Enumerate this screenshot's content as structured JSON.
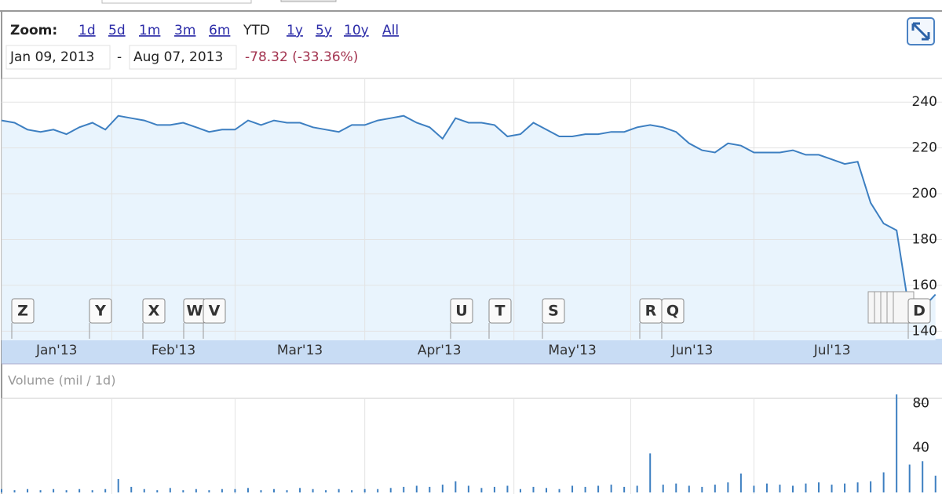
{
  "zoom": {
    "label": "Zoom:",
    "options": [
      "1d",
      "5d",
      "1m",
      "3m",
      "6m",
      "YTD",
      "1y",
      "5y",
      "10y",
      "All"
    ]
  },
  "range": {
    "start": "Jan 09, 2013",
    "separator": "-",
    "end": "Aug 07, 2013",
    "change": "-78.32 (-33.36%)"
  },
  "chart_data": [
    {
      "type": "line",
      "color": "#3d7fc1",
      "fill": "#e9f4fd",
      "x": [
        0,
        2,
        4,
        6,
        8,
        10,
        12,
        14,
        16,
        18,
        20,
        22,
        24,
        26,
        28,
        30,
        32,
        34,
        36,
        38,
        40,
        42,
        44,
        46,
        48,
        50,
        52,
        54,
        56,
        58,
        60,
        62,
        64,
        66,
        68,
        70,
        72,
        74,
        76,
        78,
        80,
        82,
        84,
        86,
        88,
        90,
        92,
        94,
        96,
        98,
        100,
        102,
        104,
        106,
        108,
        110,
        112,
        114,
        116,
        118,
        120,
        122,
        124,
        126,
        128,
        130,
        132,
        134,
        136,
        138,
        140,
        142,
        144
      ],
      "values": [
        232,
        231,
        228,
        227,
        228,
        226,
        229,
        231,
        228,
        234,
        233,
        232,
        230,
        230,
        231,
        229,
        227,
        228,
        228,
        232,
        230,
        232,
        231,
        231,
        229,
        228,
        227,
        230,
        230,
        232,
        233,
        234,
        231,
        229,
        224,
        233,
        231,
        231,
        230,
        225,
        226,
        231,
        228,
        225,
        225,
        226,
        226,
        227,
        227,
        229,
        230,
        229,
        227,
        222,
        219,
        218,
        222,
        221,
        218,
        218,
        218,
        219,
        217,
        217,
        215,
        213,
        214,
        196,
        187,
        184,
        148,
        150,
        156
      ],
      "xlim": [
        0,
        145
      ],
      "xticks": [
        {
          "value": 0,
          "label": "Jan'13"
        },
        {
          "value": 17,
          "label": "Feb'13"
        },
        {
          "value": 36,
          "label": "Mar'13"
        },
        {
          "value": 56,
          "label": "Apr'13"
        },
        {
          "value": 79,
          "label": "May'13"
        },
        {
          "value": 97,
          "label": "Jun'13"
        },
        {
          "value": 116,
          "label": "Jul'13"
        }
      ],
      "ylim": [
        136,
        250
      ],
      "yticks": [
        140,
        160,
        180,
        200,
        220,
        240
      ],
      "grid": true,
      "annotations": [
        "Z",
        "Y",
        "X",
        "W",
        "V",
        "U",
        "T",
        "S",
        "R",
        "Q",
        "D"
      ]
    },
    {
      "type": "bar",
      "title": "Volume (mil / 1d)",
      "color": "#3d7fc1",
      "x": [
        0,
        2,
        4,
        6,
        8,
        10,
        12,
        14,
        16,
        18,
        20,
        22,
        24,
        26,
        28,
        30,
        32,
        34,
        36,
        38,
        40,
        42,
        44,
        46,
        48,
        50,
        52,
        54,
        56,
        58,
        60,
        62,
        64,
        66,
        68,
        70,
        72,
        74,
        76,
        78,
        80,
        82,
        84,
        86,
        88,
        90,
        92,
        94,
        96,
        98,
        100,
        102,
        104,
        106,
        108,
        110,
        112,
        114,
        116,
        118,
        120,
        122,
        124,
        126,
        128,
        130,
        132,
        134,
        136,
        138,
        140,
        142,
        144
      ],
      "values": [
        3,
        2,
        3,
        2,
        3,
        2,
        3,
        2,
        3,
        12,
        5,
        3,
        2,
        4,
        2,
        3,
        2,
        3,
        3,
        4,
        2,
        3,
        2,
        4,
        3,
        2,
        3,
        2,
        3,
        3,
        4,
        5,
        6,
        5,
        7,
        10,
        6,
        4,
        5,
        6,
        3,
        5,
        4,
        3,
        6,
        5,
        6,
        7,
        5,
        6,
        35,
        7,
        8,
        6,
        5,
        7,
        9,
        17,
        6,
        8,
        7,
        6,
        8,
        9,
        7,
        8,
        9,
        10,
        18,
        88,
        25,
        28,
        15
      ],
      "xlim": [
        0,
        145
      ],
      "xticks": [
        0,
        17,
        36,
        56,
        79,
        97,
        116
      ],
      "ylim": [
        0,
        88
      ],
      "yticks": [
        40,
        80
      ],
      "grid": true
    }
  ]
}
